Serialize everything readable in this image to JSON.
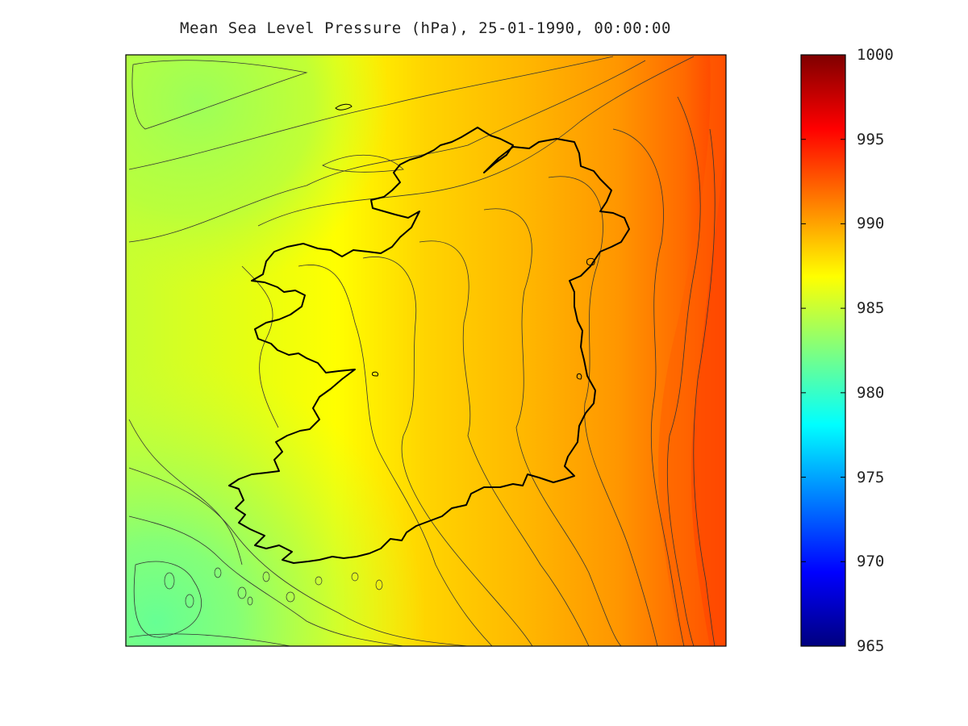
{
  "title": "Mean Sea Level Pressure (hPa), 25-01-1990, 00:00:00",
  "colorbar": {
    "min": 965,
    "max": 1000,
    "ticks": [
      "965",
      "970",
      "975",
      "980",
      "985",
      "990",
      "995",
      "1000"
    ],
    "colormap": "jet",
    "palette": [
      "#00007f",
      "#0000ff",
      "#007fff",
      "#00ffff",
      "#7fff7f",
      "#ffff00",
      "#ff7f00",
      "#ff0000",
      "#7f0000"
    ]
  },
  "field": {
    "colors": {
      "far_east": "#ff4a00",
      "east": "#ff9a00",
      "center": "#ffd000",
      "west": "#ffff00",
      "northwest": "#9cff5a",
      "southwest_low": "#6cff8c"
    }
  }
}
